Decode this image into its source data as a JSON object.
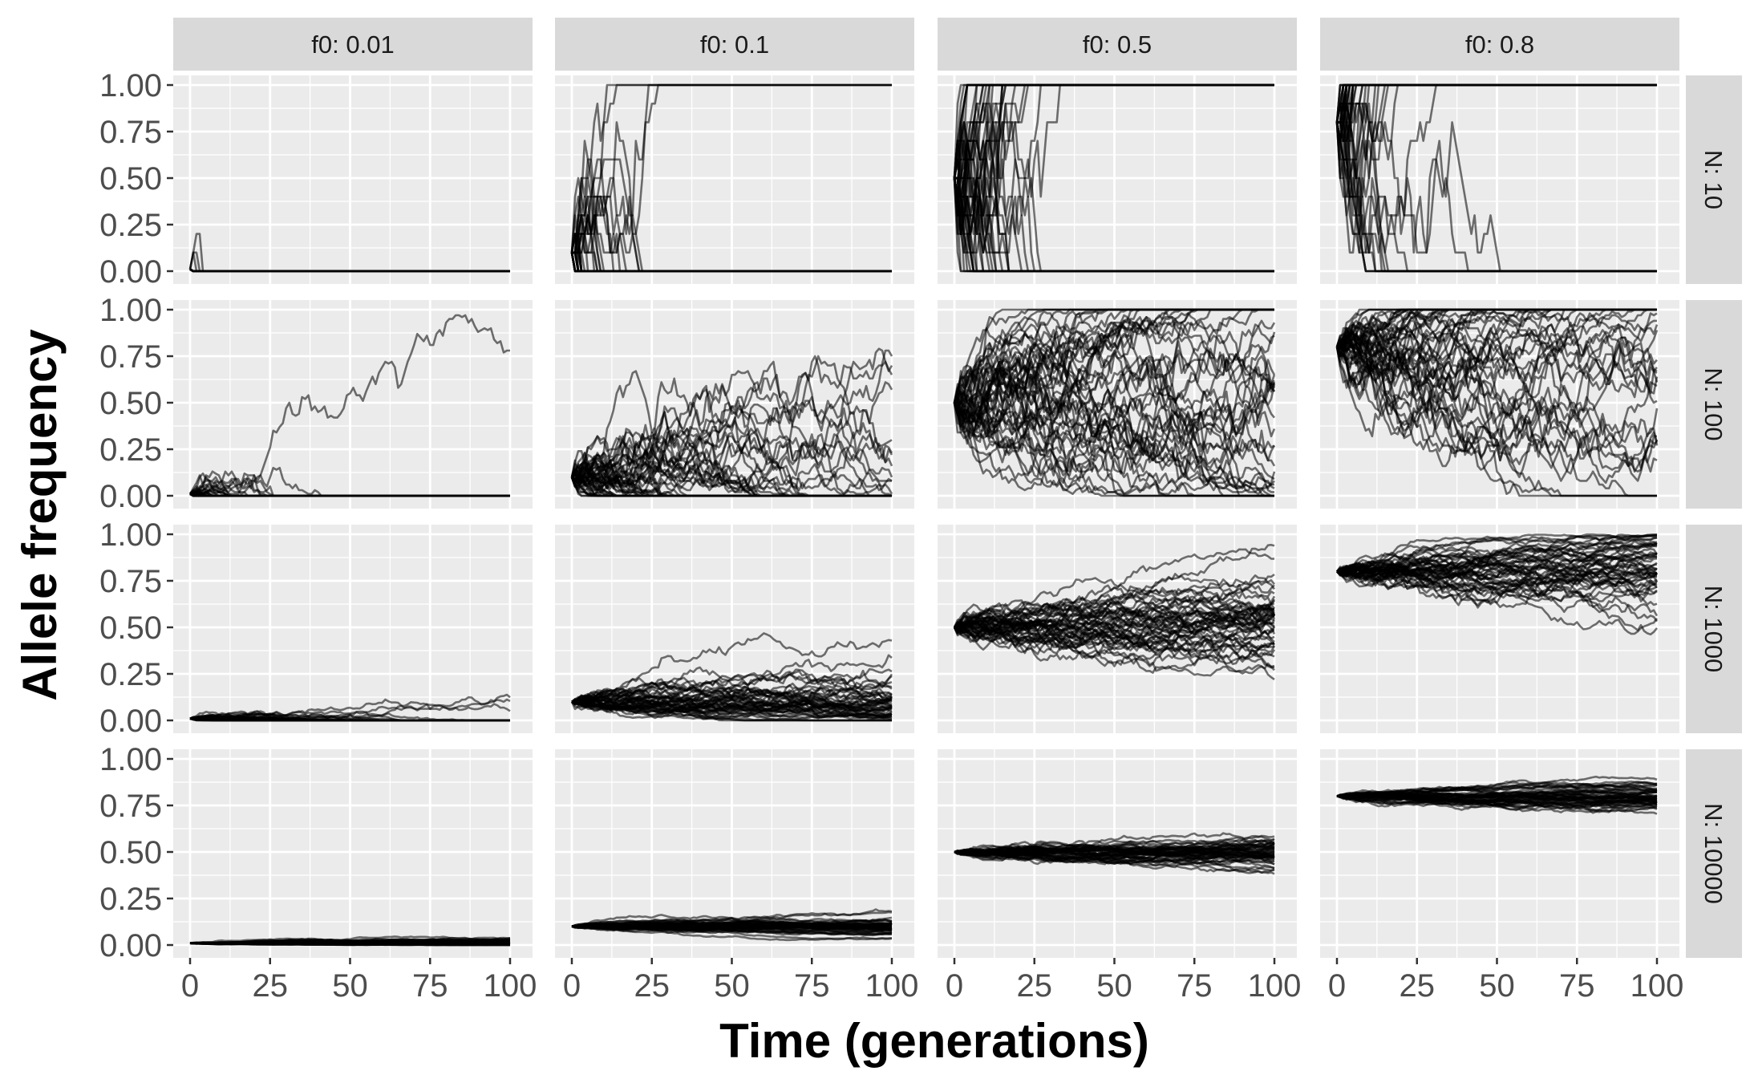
{
  "chart_data": {
    "type": "line",
    "facet_rows_label": "N",
    "facet_cols_label": "f0",
    "col_strips": [
      "f0: 0.01",
      "f0: 0.1",
      "f0: 0.5",
      "f0: 0.8"
    ],
    "row_strips": [
      "N: 10",
      "N: 100",
      "N: 1000",
      "N: 10000"
    ],
    "f0_values": [
      0.01,
      0.1,
      0.5,
      0.8
    ],
    "N_values": [
      10,
      100,
      1000,
      10000
    ],
    "replicates_per_panel": 50,
    "generations": 100,
    "x_ticks": [
      0,
      25,
      50,
      75,
      100
    ],
    "x_tick_labels": [
      "0",
      "25",
      "50",
      "75",
      "100"
    ],
    "y_ticks": [
      0,
      0.25,
      0.5,
      0.75,
      1
    ],
    "y_tick_labels": [
      "0.00",
      "0.25",
      "0.50",
      "0.75",
      "1.00"
    ],
    "xlim": [
      0,
      100
    ],
    "ylim": [
      0,
      1
    ],
    "xlabel": "Time (generations)",
    "ylabel": "Allele frequency",
    "line_color": "#000000",
    "line_opacity": 0.55,
    "panel_background": "#ebebeb",
    "grid_color": "#ffffff",
    "strip_background": "#d9d9d9",
    "grid": true
  }
}
